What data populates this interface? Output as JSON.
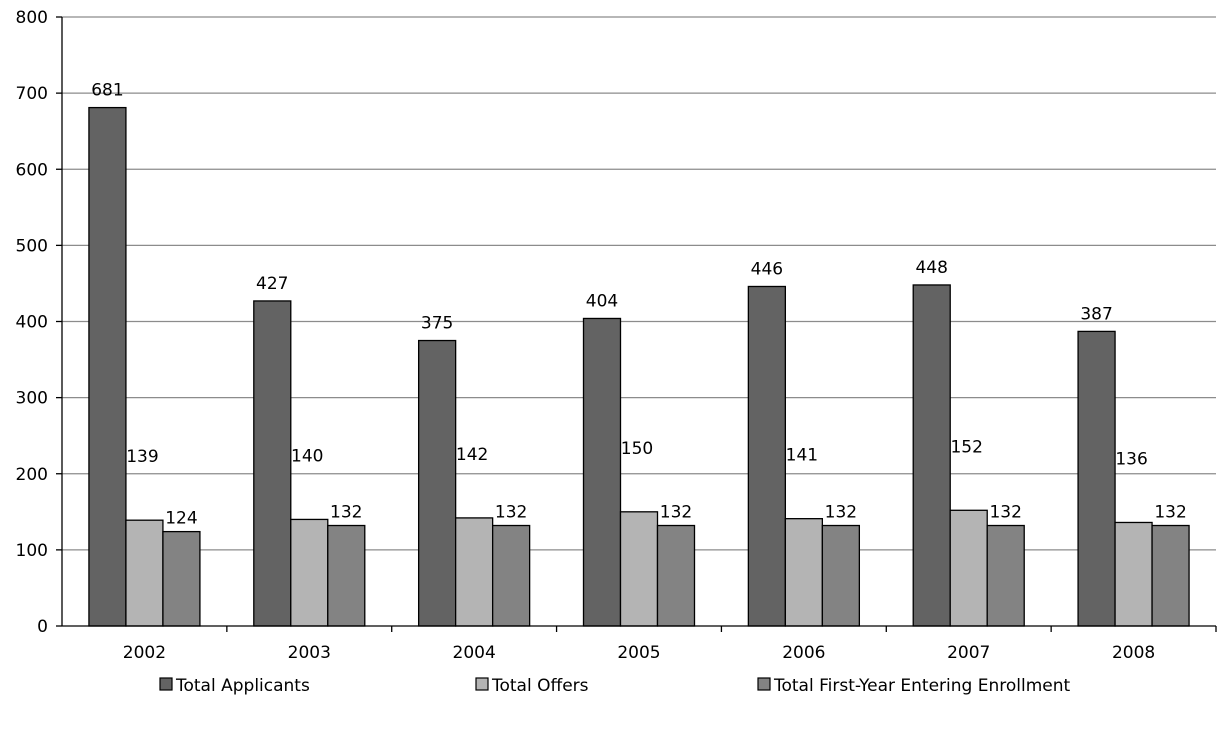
{
  "chart_data": {
    "type": "bar",
    "categories": [
      "2002",
      "2003",
      "2004",
      "2005",
      "2006",
      "2007",
      "2008"
    ],
    "series": [
      {
        "name": "Total Applicants",
        "values": [
          681,
          427,
          375,
          404,
          446,
          448,
          387
        ],
        "color": "#636363"
      },
      {
        "name": "Total Offers",
        "values": [
          139,
          140,
          142,
          150,
          141,
          152,
          136
        ],
        "color": "#b4b4b4"
      },
      {
        "name": "Total First-Year Entering Enrollment",
        "values": [
          124,
          132,
          132,
          132,
          132,
          132,
          132
        ],
        "color": "#838383"
      }
    ],
    "ylim": [
      0,
      800
    ],
    "yticks": [
      "0",
      "100",
      "200",
      "300",
      "400",
      "500",
      "600",
      "700",
      "800"
    ],
    "grid": true,
    "legend": "bottom",
    "title": "",
    "xlabel": "",
    "ylabel": ""
  }
}
